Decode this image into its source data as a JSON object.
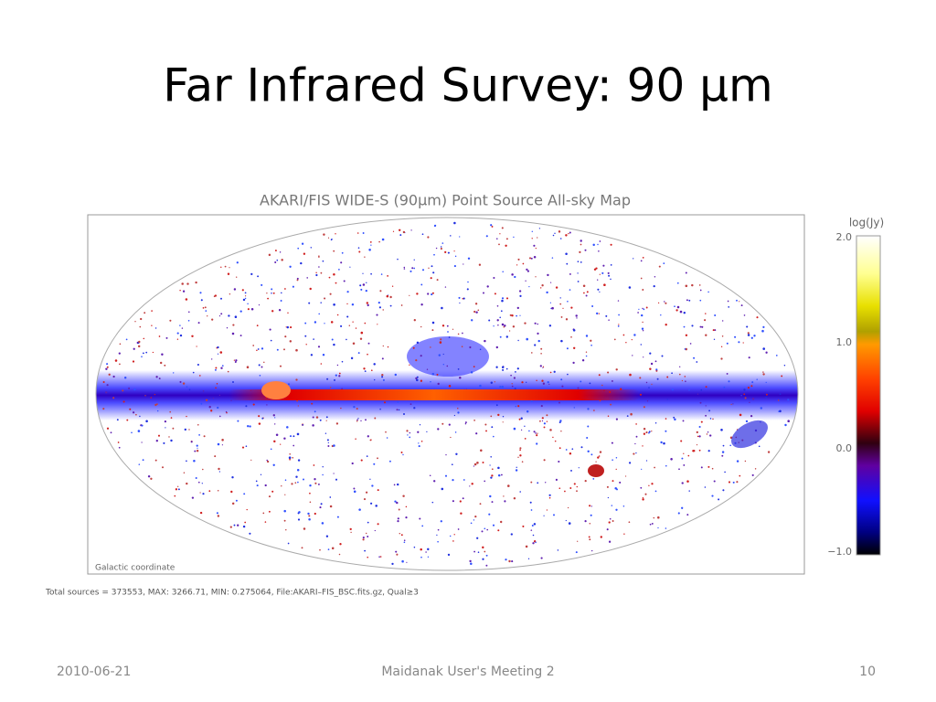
{
  "slide": {
    "title": "Far Infrared Survey: 90 μm",
    "figure": {
      "title": "AKARI/FIS WIDE-S (90μm) Point Source All-sky Map",
      "colorbar_label": "log(Jy)",
      "colorbar_ticks": [
        "2.0",
        "1.0",
        "0.0",
        "−1.0"
      ],
      "coordinate_note": "Galactic coordinate",
      "caption": "Total sources = 373553,  MAX: 3266.71,  MIN: 0.275064,  File:AKARI–FIS_BSC.fits.gz,  Qual≥3"
    },
    "footer": {
      "date": "2010-06-21",
      "center": "Maidanak User's Meeting 2",
      "page": "10"
    }
  }
}
